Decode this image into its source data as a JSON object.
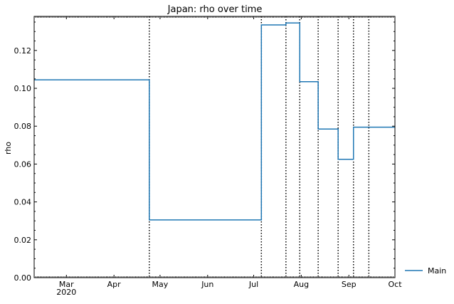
{
  "chart_data": {
    "type": "line",
    "title": "Japan: rho over time",
    "xlabel": "",
    "ylabel": "rho",
    "xlim": [
      "2020-02-09",
      "2020-10-01"
    ],
    "ylim": [
      0,
      0.138
    ],
    "grid": false,
    "legend_position": "outside right, bottom",
    "line_style": "step",
    "series": [
      {
        "name": "Main",
        "color": "#1f77b4",
        "x": [
          "2020-02-09",
          "2020-04-24",
          "2020-04-24",
          "2020-07-06",
          "2020-07-06",
          "2020-07-22",
          "2020-07-22",
          "2020-07-31",
          "2020-07-31",
          "2020-08-12",
          "2020-08-12",
          "2020-08-25",
          "2020-08-25",
          "2020-09-04",
          "2020-09-04",
          "2020-10-01"
        ],
        "y": [
          0.1045,
          0.1045,
          0.0305,
          0.0305,
          0.1335,
          0.1335,
          0.1345,
          0.1345,
          0.1035,
          0.1035,
          0.0785,
          0.0785,
          0.0625,
          0.0625,
          0.0795,
          0.0795
        ]
      }
    ],
    "vlines": {
      "style": "dotted",
      "color": "#000000",
      "x": [
        "2020-04-24",
        "2020-07-06",
        "2020-07-22",
        "2020-07-31",
        "2020-08-12",
        "2020-08-25",
        "2020-09-04",
        "2020-09-14"
      ]
    },
    "y_ticks": [
      {
        "value": 0.0,
        "label": "0.00"
      },
      {
        "value": 0.02,
        "label": "0.02"
      },
      {
        "value": 0.04,
        "label": "0.04"
      },
      {
        "value": 0.06,
        "label": "0.06"
      },
      {
        "value": 0.08,
        "label": "0.08"
      },
      {
        "value": 0.1,
        "label": "0.10"
      },
      {
        "value": 0.12,
        "label": "0.12"
      }
    ],
    "x_ticks": [
      {
        "value": "2020-03-01",
        "label": "Mar",
        "sublabel": "2020"
      },
      {
        "value": "2020-04-01",
        "label": "Apr"
      },
      {
        "value": "2020-05-01",
        "label": "May"
      },
      {
        "value": "2020-06-01",
        "label": "Jun"
      },
      {
        "value": "2020-07-01",
        "label": "Jul"
      },
      {
        "value": "2020-08-01",
        "label": "Aug"
      },
      {
        "value": "2020-09-01",
        "label": "Sep"
      },
      {
        "value": "2020-10-01",
        "label": "Oct"
      }
    ]
  }
}
